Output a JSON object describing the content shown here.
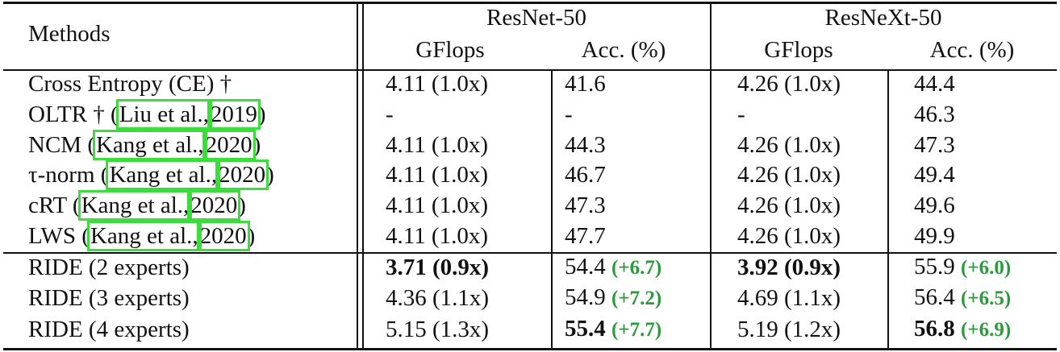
{
  "table": {
    "header": {
      "methods": "Methods",
      "groups": [
        "ResNet-50",
        "ResNeXt-50"
      ],
      "columns": [
        "GFlops",
        "Acc. (%)",
        "GFlops",
        "Acc. (%)"
      ]
    },
    "rows": [
      {
        "method": {
          "name": "Cross Entropy (CE) †"
        },
        "cells": [
          {
            "text": "4.11 (1.0x)"
          },
          {
            "text": "41.6"
          },
          {
            "text": "4.26 (1.0x)"
          },
          {
            "text": "44.4"
          }
        ]
      },
      {
        "method": {
          "name": "OLTR † (",
          "author": "Liu et al.,",
          "year": "2019",
          "close": ")"
        },
        "cells": [
          {
            "text": "-"
          },
          {
            "text": "-"
          },
          {
            "text": "-"
          },
          {
            "text": "46.3"
          }
        ]
      },
      {
        "method": {
          "name": "NCM (",
          "author": "Kang et al.,",
          "year": "2020",
          "close": ")"
        },
        "cells": [
          {
            "text": "4.11 (1.0x)"
          },
          {
            "text": "44.3"
          },
          {
            "text": "4.26 (1.0x)"
          },
          {
            "text": "47.3"
          }
        ]
      },
      {
        "method": {
          "name": "τ-norm (",
          "author": "Kang et al.,",
          "year": "2020",
          "close": ")"
        },
        "cells": [
          {
            "text": "4.11 (1.0x)"
          },
          {
            "text": "46.7"
          },
          {
            "text": "4.26 (1.0x)"
          },
          {
            "text": "49.4"
          }
        ]
      },
      {
        "method": {
          "name": "cRT (",
          "author": "Kang et al.,",
          "year": "2020",
          "close": ")"
        },
        "cells": [
          {
            "text": "4.11 (1.0x)"
          },
          {
            "text": "47.3"
          },
          {
            "text": "4.26 (1.0x)"
          },
          {
            "text": "49.6"
          }
        ]
      },
      {
        "method": {
          "name": "LWS (",
          "author": "Kang et al.,",
          "year": "2020",
          "close": ")"
        },
        "cells": [
          {
            "text": "4.11 (1.0x)"
          },
          {
            "text": "47.7"
          },
          {
            "text": "4.26 (1.0x)"
          },
          {
            "text": "49.9"
          }
        ]
      },
      {
        "method": {
          "name": "RIDE (2 experts)"
        },
        "cells": [
          {
            "text": "3.71 (0.9x)",
            "bold": true
          },
          {
            "text": "54.4",
            "gain": "(+6.7)"
          },
          {
            "text": "3.92 (0.9x)",
            "bold": true
          },
          {
            "text": "55.9",
            "gain": "(+6.0)"
          }
        ]
      },
      {
        "method": {
          "name": "RIDE (3 experts)"
        },
        "cells": [
          {
            "text": "4.36 (1.1x)"
          },
          {
            "text": "54.9",
            "gain": "(+7.2)"
          },
          {
            "text": "4.69 (1.1x)"
          },
          {
            "text": "56.4",
            "gain": "(+6.5)"
          }
        ]
      },
      {
        "method": {
          "name": "RIDE (4 experts)"
        },
        "cells": [
          {
            "text": "5.15 (1.3x)"
          },
          {
            "text": "55.4",
            "gain": "(+7.7)",
            "bold": true
          },
          {
            "text": "5.19 (1.2x)"
          },
          {
            "text": "56.8",
            "gain": "(+6.9)",
            "bold": true
          }
        ]
      }
    ]
  }
}
